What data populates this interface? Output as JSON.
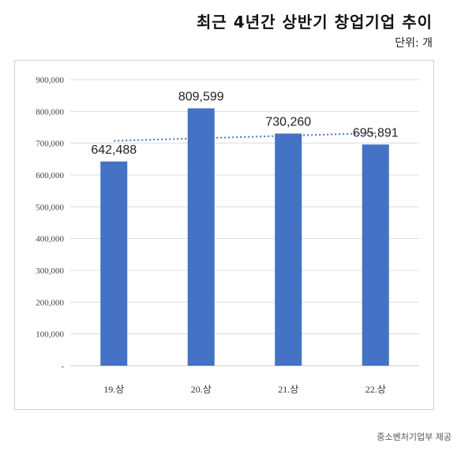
{
  "title": "최근 4년간 상반기 창업기업 추이",
  "unit_label": "단위: 개",
  "credit": "중소벤처기업부 제공",
  "chart_data": {
    "type": "bar",
    "categories": [
      "19.상",
      "20.상",
      "21.상",
      "22.상"
    ],
    "values": [
      642488,
      809599,
      730260,
      695891
    ],
    "data_labels": [
      "642,488",
      "809,599",
      "730,260",
      "695,891"
    ],
    "ylim": [
      0,
      900000
    ],
    "y_ticks": [
      0,
      100000,
      200000,
      300000,
      400000,
      500000,
      600000,
      700000,
      800000,
      900000
    ],
    "y_tick_labels": [
      "-",
      "100,000",
      "200,000",
      "300,000",
      "400,000",
      "500,000",
      "600,000",
      "700,000",
      "800,000",
      "900,000"
    ],
    "trendline": {
      "style": "dotted",
      "type": "linear"
    },
    "grid": true,
    "legend": "none",
    "bar_color": "#4472c4",
    "trend_color": "#4472c4"
  }
}
